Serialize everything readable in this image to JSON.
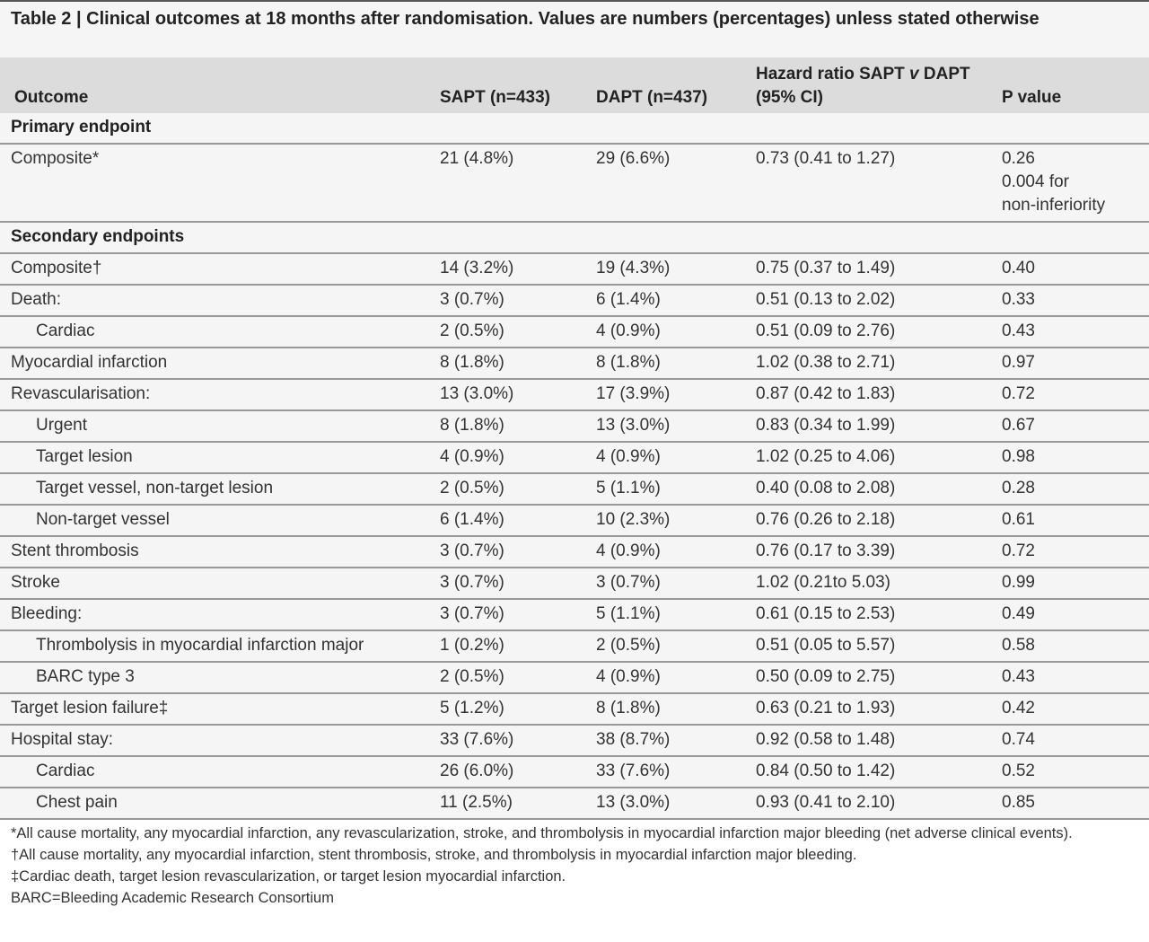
{
  "title": "Table 2 | Clinical outcomes at 18 months after randomisation. Values are numbers (percentages) unless stated otherwise",
  "columns": {
    "outcome": "Outcome",
    "sapt": "SAPT (n=433)",
    "dapt": "DAPT (n=437)",
    "hr_line1": "Hazard ratio SAPT ",
    "hr_v": "v",
    "hr_line1b": " DAPT",
    "hr_line2": "(95% CI)",
    "p": "P value"
  },
  "sections": [
    {
      "label": "Primary endpoint",
      "rows": [
        {
          "outcome": "Composite*",
          "indent": false,
          "sapt": "21 (4.8%)",
          "dapt": "29 (6.6%)",
          "hr": "0.73 (0.41 to 1.27)",
          "p": "0.26",
          "p2": "0.004 for",
          "p3": "non-inferiority"
        }
      ]
    },
    {
      "label": "Secondary endpoints",
      "rows": [
        {
          "outcome": "Composite†",
          "indent": false,
          "sapt": "14 (3.2%)",
          "dapt": "19 (4.3%)",
          "hr": "0.75 (0.37 to 1.49)",
          "p": "0.40"
        },
        {
          "outcome": "Death:",
          "indent": false,
          "sapt": "3 (0.7%)",
          "dapt": "6 (1.4%)",
          "hr": "0.51 (0.13 to 2.02)",
          "p": "0.33"
        },
        {
          "outcome": "Cardiac",
          "indent": true,
          "sapt": "2 (0.5%)",
          "dapt": "4 (0.9%)",
          "hr": "0.51 (0.09 to 2.76)",
          "p": "0.43"
        },
        {
          "outcome": "Myocardial infarction",
          "indent": false,
          "sapt": "8 (1.8%)",
          "dapt": "8 (1.8%)",
          "hr": "1.02 (0.38 to 2.71)",
          "p": "0.97"
        },
        {
          "outcome": "Revascularisation:",
          "indent": false,
          "sapt": "13 (3.0%)",
          "dapt": "17 (3.9%)",
          "hr": "0.87 (0.42 to 1.83)",
          "p": "0.72"
        },
        {
          "outcome": "Urgent",
          "indent": true,
          "sapt": "8 (1.8%)",
          "dapt": "13 (3.0%)",
          "hr": "0.83 (0.34 to 1.99)",
          "p": "0.67"
        },
        {
          "outcome": "Target lesion",
          "indent": true,
          "sapt": "4 (0.9%)",
          "dapt": "4 (0.9%)",
          "hr": "1.02 (0.25 to 4.06)",
          "p": "0.98"
        },
        {
          "outcome": "Target vessel, non-target lesion",
          "indent": true,
          "sapt": "2 (0.5%)",
          "dapt": "5 (1.1%)",
          "hr": "0.40 (0.08 to 2.08)",
          "p": "0.28"
        },
        {
          "outcome": "Non-target vessel",
          "indent": true,
          "sapt": "6 (1.4%)",
          "dapt": "10 (2.3%)",
          "hr": "0.76 (0.26 to 2.18)",
          "p": "0.61"
        },
        {
          "outcome": "Stent thrombosis",
          "indent": false,
          "sapt": "3 (0.7%)",
          "dapt": "4 (0.9%)",
          "hr": "0.76 (0.17 to 3.39)",
          "p": "0.72"
        },
        {
          "outcome": "Stroke",
          "indent": false,
          "sapt": "3 (0.7%)",
          "dapt": "3 (0.7%)",
          "hr": "1.02 (0.21to 5.03)",
          "p": "0.99"
        },
        {
          "outcome": "Bleeding:",
          "indent": false,
          "sapt": "3 (0.7%)",
          "dapt": "5 (1.1%)",
          "hr": "0.61 (0.15 to 2.53)",
          "p": "0.49"
        },
        {
          "outcome": "Thrombolysis in myocardial infarction major",
          "indent": true,
          "sapt": "1 (0.2%)",
          "dapt": "2 (0.5%)",
          "hr": "0.51 (0.05 to 5.57)",
          "p": "0.58"
        },
        {
          "outcome": "BARC type 3",
          "indent": true,
          "sapt": "2 (0.5%)",
          "dapt": "4 (0.9%)",
          "hr": "0.50 (0.09 to 2.75)",
          "p": "0.43"
        },
        {
          "outcome": "Target lesion failure‡",
          "indent": false,
          "sapt": "5 (1.2%)",
          "dapt": "8 (1.8%)",
          "hr": "0.63 (0.21 to 1.93)",
          "p": "0.42"
        },
        {
          "outcome": "Hospital stay:",
          "indent": false,
          "sapt": "33 (7.6%)",
          "dapt": "38 (8.7%)",
          "hr": "0.92 (0.58 to 1.48)",
          "p": "0.74"
        },
        {
          "outcome": "Cardiac",
          "indent": true,
          "sapt": "26 (6.0%)",
          "dapt": "33 (7.6%)",
          "hr": "0.84 (0.50 to 1.42)",
          "p": "0.52"
        },
        {
          "outcome": "Chest pain",
          "indent": true,
          "sapt": "11 (2.5%)",
          "dapt": "13 (3.0%)",
          "hr": "0.93 (0.41 to 2.10)",
          "p": "0.85"
        }
      ]
    }
  ],
  "footnotes": [
    "*All cause mortality, any myocardial infarction, any revascularization, stroke, and thrombolysis in myocardial infarction major bleeding (net adverse clinical events).",
    "†All cause mortality, any myocardial infarction, stent thrombosis, stroke, and thrombolysis in myocardial infarction major bleeding.",
    "‡Cardiac death, target lesion revascularization, or target lesion myocardial infarction.",
    "BARC=Bleeding Academic Research Consortium"
  ]
}
